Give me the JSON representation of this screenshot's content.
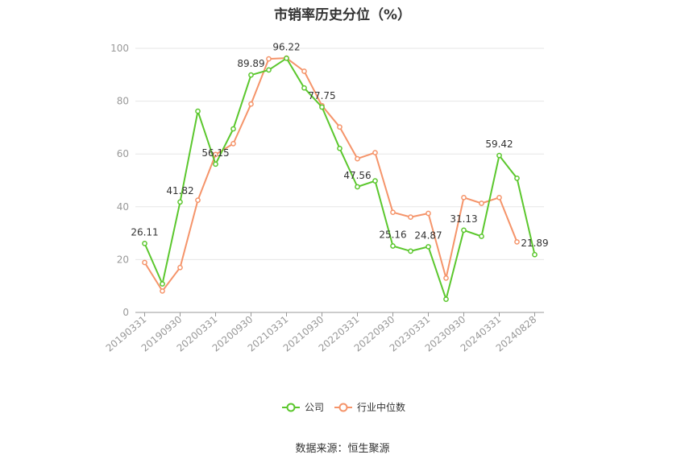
{
  "chart_data": {
    "type": "line",
    "title": "市销率历史分位（%）",
    "ylim": [
      0,
      100
    ],
    "yticks": [
      0,
      20,
      40,
      60,
      80,
      100
    ],
    "grid": true,
    "legend_position": "bottom",
    "x": [
      "20190331",
      "20190630",
      "20190930",
      "20191231",
      "20200331",
      "20200630",
      "20200930",
      "20201231",
      "20210331",
      "20210630",
      "20210930",
      "20211231",
      "20220331",
      "20220630",
      "20220930",
      "20221231",
      "20230331",
      "20230630",
      "20230930",
      "20231231",
      "20240331",
      "20240630",
      "20240828"
    ],
    "xtick_labels": [
      "20190331",
      "20190930",
      "20200331",
      "20200930",
      "20210331",
      "20210930",
      "20220331",
      "20220930",
      "20230331",
      "20230930",
      "20240331",
      "20240828"
    ],
    "series": [
      {
        "name": "公司",
        "color": "#5bc72d",
        "values": [
          26.11,
          10.8,
          41.82,
          76.2,
          56.15,
          69.5,
          89.89,
          91.8,
          96.22,
          85.0,
          77.75,
          62.1,
          47.56,
          49.8,
          25.16,
          23.2,
          24.87,
          5.0,
          31.13,
          28.8,
          59.42,
          50.8,
          21.89
        ],
        "labels": {
          "0": "26.11",
          "2": "41.82",
          "4": "56.15",
          "6": "89.89",
          "8": "96.22",
          "10": "77.75",
          "12": "47.56",
          "14": "25.16",
          "16": "24.87",
          "18": "31.13",
          "20": "59.42",
          "22": "21.89"
        }
      },
      {
        "name": "行业中位数",
        "color": "#f5946a",
        "values": [
          18.9,
          8.1,
          17.0,
          42.5,
          59.8,
          63.9,
          78.9,
          96.0,
          96.3,
          91.3,
          78.3,
          70.2,
          58.2,
          60.5,
          37.9,
          36.1,
          37.5,
          13.0,
          43.5,
          41.3,
          43.5,
          26.7,
          null
        ]
      }
    ]
  },
  "source_text": "数据来源：恒生聚源"
}
